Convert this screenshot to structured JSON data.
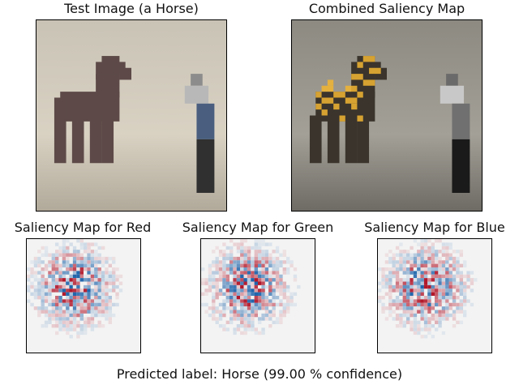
{
  "panels": {
    "test_image": {
      "title": "Test Image (a Horse)"
    },
    "combined_map": {
      "title": "Combined Saliency Map"
    },
    "red_map": {
      "title": "Saliency Map for Red"
    },
    "green_map": {
      "title": "Saliency Map for Green"
    },
    "blue_map": {
      "title": "Saliency Map for Blue"
    }
  },
  "caption": "Predicted label: Horse (99.00 % confidence)",
  "colors": {
    "background": "#f3f3f3",
    "positive": "#b2182b",
    "negative": "#2166ac",
    "highlight": "#f2b632"
  }
}
